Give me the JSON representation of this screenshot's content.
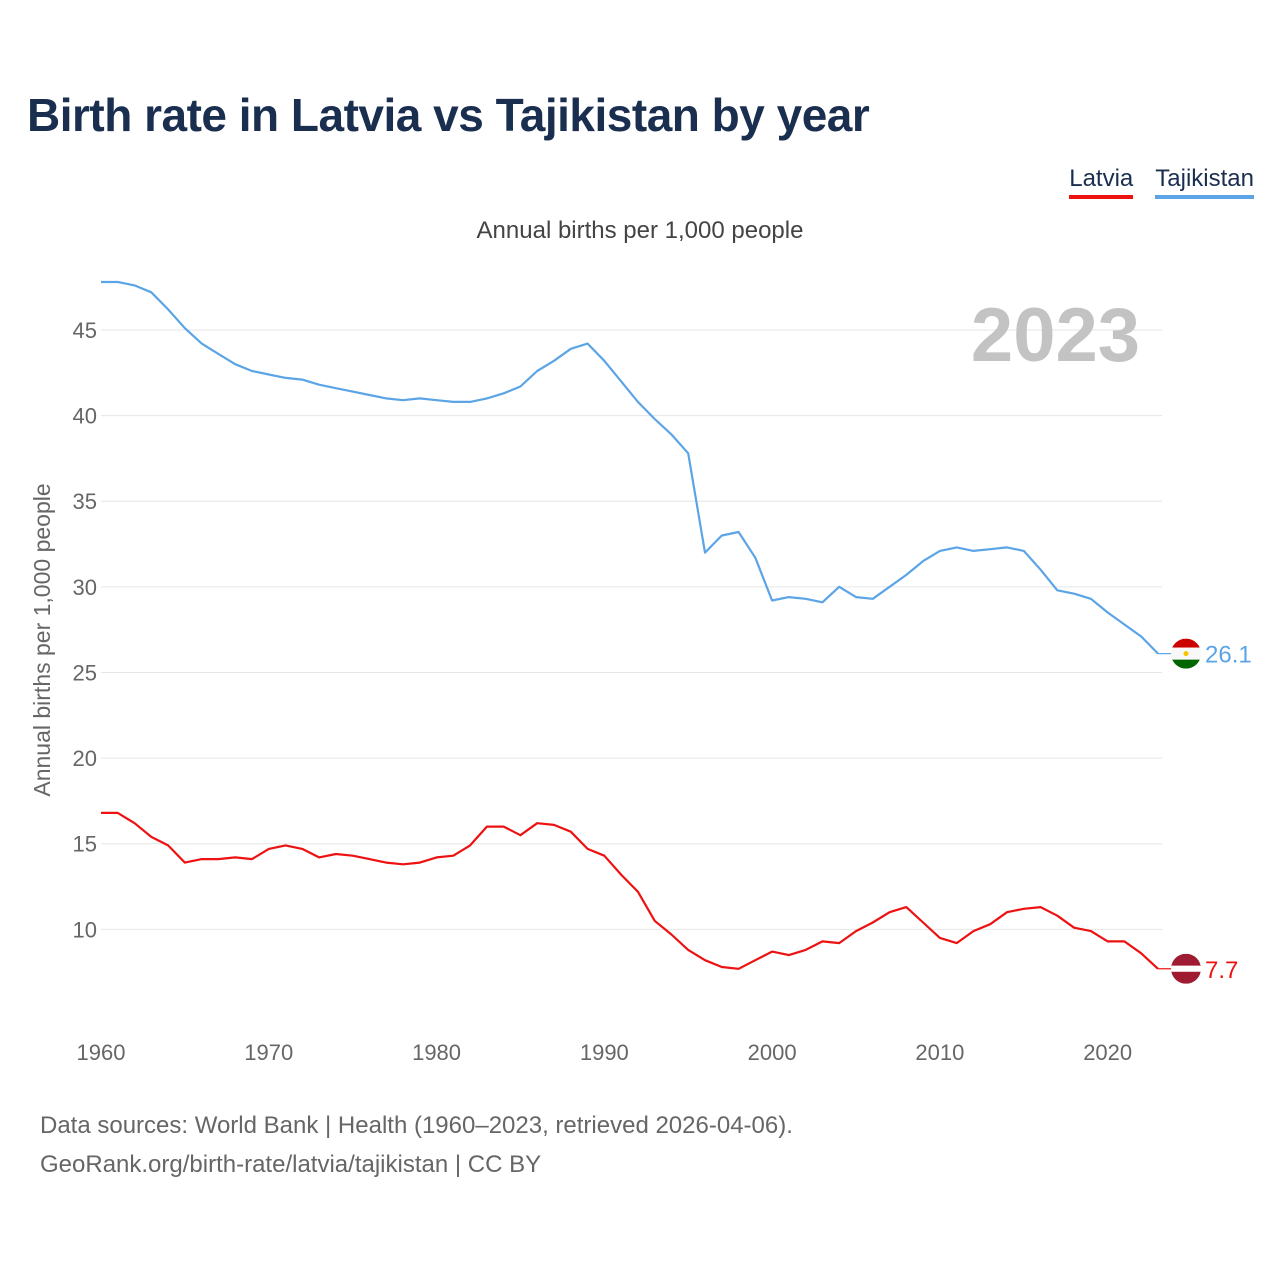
{
  "title": "Birth rate in Latvia vs Tajikistan by year",
  "subtitle": "Annual births per 1,000 people",
  "legend": [
    {
      "name": "Latvia",
      "color": "#ee1111"
    },
    {
      "name": "Tajikistan",
      "color": "#5ba4e6"
    }
  ],
  "footer": {
    "line1": "Data sources: World Bank | Health (1960–2023, retrieved 2026-04-06).",
    "line2": "GeoRank.org/birth-rate/latvia/tajikistan | CC BY"
  },
  "chart_data": {
    "type": "line",
    "title": "Birth rate in Latvia vs Tajikistan by year",
    "ylabel": "Annual births per 1,000 people",
    "xlabel": "",
    "year_label": "2023",
    "xlim": [
      1960,
      2023
    ],
    "ylim": [
      5,
      48.5
    ],
    "x_ticks": [
      1960,
      1970,
      1980,
      1990,
      2000,
      2010,
      2020
    ],
    "y_ticks": [
      10,
      15,
      20,
      25,
      30,
      35,
      40,
      45
    ],
    "grid": true,
    "series": [
      {
        "name": "Tajikistan",
        "color": "#5ba4e6",
        "end_label": "26.1",
        "x_start": 1960,
        "values": [
          47.8,
          47.8,
          47.6,
          47.2,
          46.2,
          45.1,
          44.2,
          43.6,
          43.0,
          42.6,
          42.4,
          42.2,
          42.1,
          41.8,
          41.6,
          41.4,
          41.2,
          41.0,
          40.9,
          41.0,
          40.9,
          40.8,
          40.8,
          41.0,
          41.3,
          41.7,
          42.6,
          43.2,
          43.9,
          44.2,
          43.2,
          42.0,
          40.8,
          39.8,
          38.9,
          37.8,
          32.0,
          33.0,
          33.2,
          31.7,
          29.2,
          29.4,
          29.3,
          29.1,
          30.0,
          29.4,
          29.3,
          30.0,
          30.7,
          31.5,
          32.1,
          32.3,
          32.1,
          32.2,
          32.3,
          32.1,
          31.0,
          29.8,
          29.6,
          29.3,
          28.5,
          27.8,
          27.1,
          26.1
        ]
      },
      {
        "name": "Latvia",
        "color": "#ee1111",
        "end_label": "7.7",
        "x_start": 1960,
        "values": [
          16.8,
          16.8,
          16.2,
          15.4,
          14.9,
          13.9,
          14.1,
          14.1,
          14.2,
          14.1,
          14.7,
          14.9,
          14.7,
          14.2,
          14.4,
          14.3,
          14.1,
          13.9,
          13.8,
          13.9,
          14.2,
          14.3,
          14.9,
          16.0,
          16.0,
          15.5,
          16.2,
          16.1,
          15.7,
          14.7,
          14.3,
          13.2,
          12.2,
          10.5,
          9.7,
          8.8,
          8.2,
          7.8,
          7.7,
          8.2,
          8.7,
          8.5,
          8.8,
          9.3,
          9.2,
          9.9,
          10.4,
          11.0,
          11.3,
          10.4,
          9.5,
          9.2,
          9.9,
          10.3,
          11.0,
          11.2,
          11.3,
          10.8,
          10.1,
          9.9,
          9.3,
          9.3,
          8.6,
          7.7
        ]
      }
    ]
  }
}
